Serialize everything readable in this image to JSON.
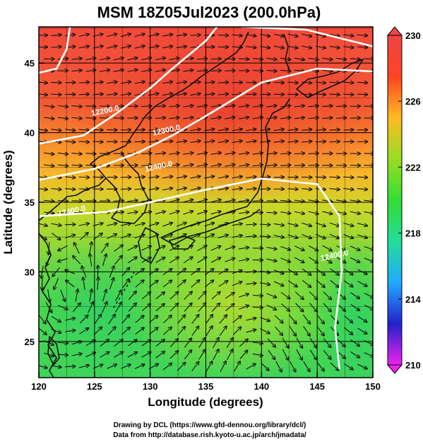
{
  "chart_data": {
    "type": "heatmap",
    "title": "MSM 18Z05Jul2023 (200.0hPa)",
    "xlabel": "Longitude (degrees)",
    "ylabel": "Latitude  (degrees)",
    "xlim": [
      120,
      150
    ],
    "ylim": [
      22.4,
      47.6
    ],
    "x_ticks": [
      120,
      125,
      130,
      135,
      140,
      145,
      150
    ],
    "y_ticks": [
      25,
      30,
      35,
      40,
      45
    ],
    "grid": true,
    "colorbar": {
      "min": 210,
      "max": 230,
      "ticks": [
        210,
        214,
        218,
        222,
        226,
        230
      ],
      "colors": [
        "#ee22ee",
        "#2222cc",
        "#22aaff",
        "#22dd99",
        "#33dd33",
        "#99dd22",
        "#ffbb22",
        "#ff4422",
        "#ee4444"
      ]
    },
    "temperature_fields": [
      {
        "region": "north",
        "level": 229
      },
      {
        "region": "central",
        "level": 227
      },
      {
        "region": "south",
        "level": 223
      }
    ],
    "contours": [
      {
        "label": "12200.0",
        "points": [
          [
            120,
            39.2
          ],
          [
            124,
            39.8
          ],
          [
            127,
            41.4
          ],
          [
            130,
            43.2
          ],
          [
            132,
            44.6
          ],
          [
            135,
            46.6
          ],
          [
            136,
            47.6
          ]
        ]
      },
      {
        "label": "12300.0",
        "points": [
          [
            120,
            36.6
          ],
          [
            125,
            37.4
          ],
          [
            129,
            38.6
          ],
          [
            132,
            39.8
          ],
          [
            135,
            41.2
          ],
          [
            140,
            43.6
          ],
          [
            145,
            44.6
          ],
          [
            150,
            44.4
          ]
        ]
      },
      {
        "label": "12400.0",
        "points": [
          [
            120,
            34.0
          ],
          [
            126,
            34.3
          ],
          [
            130,
            35.0
          ],
          [
            135,
            35.9
          ],
          [
            140,
            36.7
          ],
          [
            145,
            36.3
          ],
          [
            147,
            34.0
          ],
          [
            147.2,
            30.0
          ],
          [
            146.6,
            26.0
          ],
          [
            147.0,
            23.0
          ]
        ]
      },
      {
        "label": "",
        "points": [
          [
            122.8,
            47.6
          ],
          [
            122.5,
            46.0
          ],
          [
            121.6,
            44.6
          ],
          [
            120,
            44.3
          ]
        ]
      },
      {
        "label": "",
        "points": [
          [
            138.2,
            47.6
          ],
          [
            144,
            47.4
          ],
          [
            148,
            46.6
          ],
          [
            150,
            46.2
          ]
        ]
      }
    ],
    "contour_labels": [
      {
        "text": "12200.0",
        "lon": 126.0,
        "lat": 41.4
      },
      {
        "text": "12300.0",
        "lon": 131.5,
        "lat": 40.0
      },
      {
        "text": "12400.0",
        "lon": 130.8,
        "lat": 37.4
      },
      {
        "text": "12400.0",
        "lon": 123.0,
        "lat": 34.2
      },
      {
        "text": "12400.0",
        "lon": 146.6,
        "lat": 31.0
      }
    ],
    "wind": {
      "description": "streamlines with arrowheads",
      "cyclonic_center": {
        "lon": 122.5,
        "lat": 27.5
      },
      "anticyclonic_center": {
        "lon": 139.5,
        "lat": 28.0
      },
      "jet_axis_lat": 40
    }
  },
  "credits": {
    "line1": "Drawing by DCL (https://www.gfd-dennou.org/library/dcl/)",
    "line2": "Data from http://database.rish.kyoto-u.ac.jp/arch/jmadata/"
  }
}
